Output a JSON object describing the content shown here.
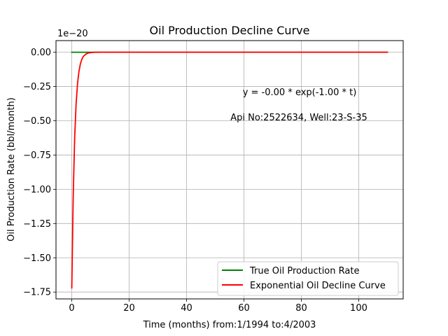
{
  "chart_data": {
    "type": "line",
    "title": "Oil Production Decline Curve",
    "xlabel": "Time (months) from:1/1994 to:4/2003",
    "ylabel": "Oil Production Rate (bbl/month)",
    "offset_text": "1e−20",
    "xlim": [
      -5.5,
      115.5
    ],
    "ylim": [
      -1.8,
      0.085
    ],
    "x_ticks": [
      0,
      20,
      40,
      60,
      80,
      100
    ],
    "x_tick_labels": [
      "0",
      "20",
      "40",
      "60",
      "80",
      "100"
    ],
    "y_ticks": [
      0,
      -0.25,
      -0.5,
      -0.75,
      -1.0,
      -1.25,
      -1.5,
      -1.75
    ],
    "y_tick_labels": [
      "0.00",
      "−0.25",
      "−0.50",
      "−0.75",
      "−1.00",
      "−1.25",
      "−1.50",
      "−1.75"
    ],
    "grid": true,
    "legend_position": "bottom-right",
    "series": [
      {
        "name": "True Oil Production Rate",
        "color": "#008000",
        "x": [
          0,
          2,
          4,
          6,
          8,
          10,
          20,
          30,
          40,
          50,
          60,
          70,
          80,
          90,
          100,
          110
        ],
        "y": [
          0,
          0,
          0,
          0,
          0,
          0,
          0,
          0,
          0,
          0,
          0,
          0,
          0,
          0,
          0,
          0
        ]
      },
      {
        "name": "Exponential Oil Decline Curve",
        "color": "#ff0000",
        "x": [
          0,
          0.5,
          1,
          1.5,
          2,
          2.5,
          3,
          3.5,
          4,
          5,
          6,
          7,
          8,
          10,
          20,
          40,
          60,
          80,
          100,
          110
        ],
        "y": [
          -1.72,
          -1.05,
          -0.63,
          -0.38,
          -0.23,
          -0.14,
          -0.085,
          -0.052,
          -0.031,
          -0.012,
          -0.004,
          -0.0016,
          -0.0006,
          0,
          0,
          0,
          0,
          0,
          0,
          0
        ]
      }
    ],
    "annotations": [
      "y = -0.00 * exp(-1.00 * t)",
      "Api No:2522634, Well:23-S-35"
    ]
  }
}
